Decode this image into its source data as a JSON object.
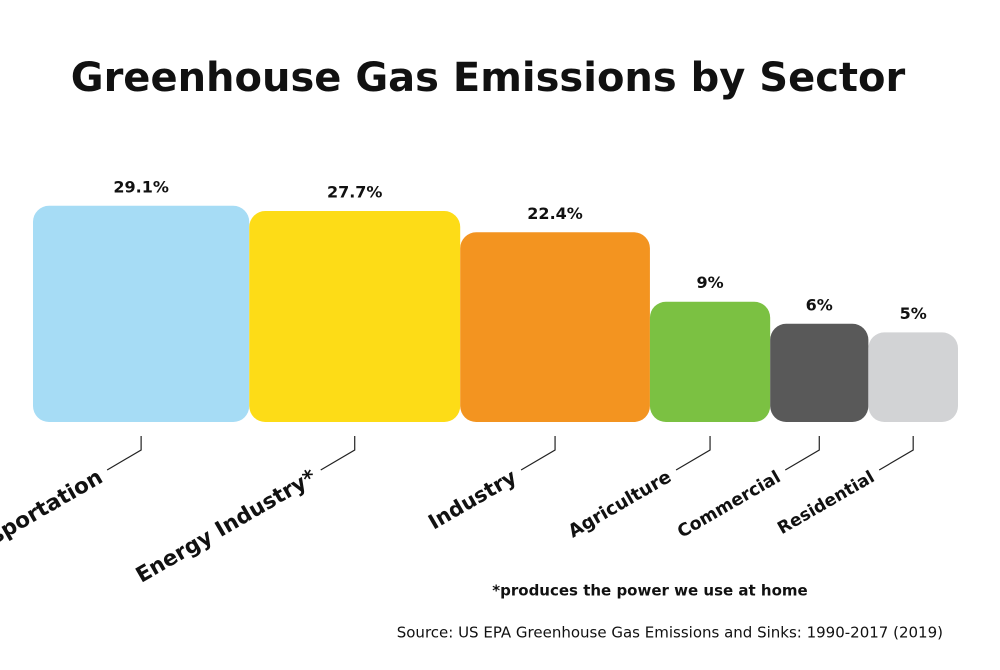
{
  "chart_data": {
    "type": "bar",
    "title": "Greenhouse Gas Emissions by Sector",
    "categories": [
      "Transportation",
      "Energy Industry*",
      "Industry",
      "Agriculture",
      "Commercial",
      "Residential"
    ],
    "values": [
      29.1,
      27.7,
      22.4,
      9,
      6,
      5
    ],
    "value_labels": [
      "29.1%",
      "27.7%",
      "22.4%",
      "9%",
      "6%",
      "5%"
    ],
    "colors": [
      "#a6dcf5",
      "#fddc17",
      "#f39420",
      "#7bc142",
      "#595959",
      "#d2d3d5"
    ],
    "footnote": "*produces the power we use at home",
    "source": "Source: US EPA Greenhouse Gas Emissions and Sinks: 1990-2017 (2019)"
  }
}
